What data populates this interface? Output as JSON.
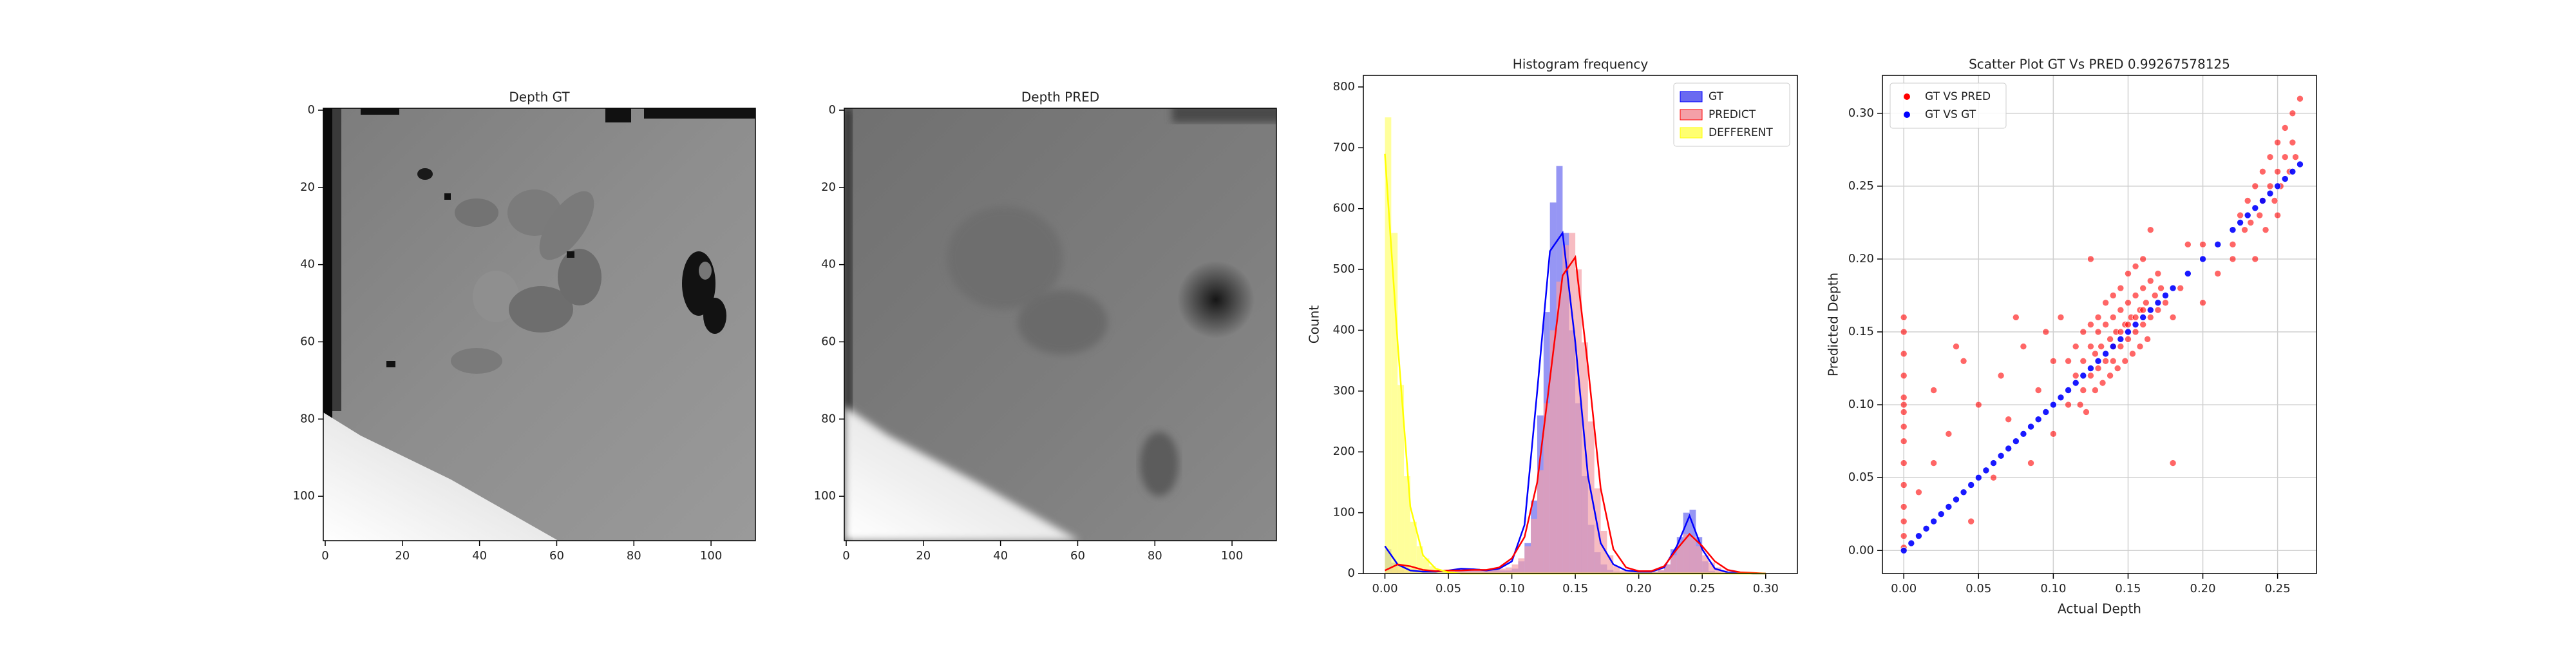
{
  "chart_data": [
    {
      "type": "image",
      "title": "Depth GT",
      "xlim": [
        -0.5,
        111.5
      ],
      "ylim": [
        111.5,
        -0.5
      ],
      "xticks": [
        0,
        20,
        40,
        60,
        80,
        100
      ],
      "yticks": [
        0,
        20,
        40,
        60,
        80,
        100
      ]
    },
    {
      "type": "image",
      "title": "Depth PRED",
      "xlim": [
        -0.5,
        111.5
      ],
      "ylim": [
        111.5,
        -0.5
      ],
      "xticks": [
        0,
        20,
        40,
        60,
        80,
        100
      ],
      "yticks": [
        0,
        20,
        40,
        60,
        80,
        100
      ]
    },
    {
      "type": "histogram",
      "title": "Histogram frequency",
      "ylabel": "Count",
      "legend": "upper right",
      "xlim": [
        -0.017,
        0.325
      ],
      "ylim": [
        0,
        819
      ],
      "xticks": [
        {
          "value": 0,
          "label": "0.00"
        },
        0.05,
        {
          "value": 0.1,
          "label": "0.10"
        },
        0.15,
        {
          "value": 0.2,
          "label": "0.20"
        },
        0.25,
        {
          "value": 0.3,
          "label": "0.30"
        }
      ],
      "yticks": [
        0,
        100,
        200,
        300,
        400,
        500,
        600,
        700,
        800
      ],
      "bins": [
        0,
        0.005,
        0.01,
        0.015,
        0.02,
        0.025,
        0.03,
        0.035,
        0.04,
        0.045,
        0.05,
        0.055,
        0.06,
        0.065,
        0.07,
        0.075,
        0.08,
        0.085,
        0.09,
        0.095,
        0.1,
        0.105,
        0.11,
        0.115,
        0.12,
        0.125,
        0.13,
        0.135,
        0.14,
        0.145,
        0.15,
        0.155,
        0.16,
        0.165,
        0.17,
        0.175,
        0.18,
        0.185,
        0.19,
        0.195,
        0.2,
        0.205,
        0.21,
        0.215,
        0.22,
        0.225,
        0.23,
        0.235,
        0.24,
        0.245,
        0.25,
        0.255,
        0.26,
        0.265,
        0.27,
        0.275,
        0.28,
        0.285,
        0.29,
        0.295,
        0.3,
        0.305,
        0.31
      ],
      "kde_x": [
        0,
        0.01,
        0.02,
        0.03,
        0.04,
        0.05,
        0.06,
        0.07,
        0.08,
        0.09,
        0.1,
        0.11,
        0.12,
        0.13,
        0.14,
        0.15,
        0.16,
        0.17,
        0.18,
        0.19,
        0.2,
        0.21,
        0.22,
        0.23,
        0.24,
        0.25,
        0.26,
        0.27,
        0.28,
        0.29,
        0.3
      ],
      "series": [
        {
          "name": "GT",
          "color": "#0000ff",
          "bar_color": "#6a6af0",
          "values": [
            40,
            18,
            6,
            3,
            2,
            2,
            2,
            2,
            2,
            2,
            3,
            5,
            6,
            8,
            8,
            7,
            6,
            6,
            5,
            5,
            8,
            20,
            50,
            120,
            260,
            430,
            610,
            670,
            560,
            400,
            280,
            160,
            80,
            35,
            15,
            6,
            3,
            2,
            2,
            2,
            2,
            2,
            3,
            5,
            15,
            40,
            60,
            100,
            105,
            60,
            20,
            4,
            2,
            1,
            0,
            0,
            0,
            0,
            0,
            0,
            0,
            0
          ],
          "kde": [
            45,
            15,
            5,
            3,
            3,
            5,
            8,
            7,
            5,
            8,
            20,
            80,
            300,
            530,
            560,
            380,
            160,
            50,
            15,
            5,
            3,
            3,
            10,
            45,
            95,
            40,
            8,
            2,
            1,
            0,
            0
          ]
        },
        {
          "name": "PREDICT",
          "color": "#ff0000",
          "bar_color": "#f4a0a8",
          "values": [
            5,
            12,
            15,
            12,
            8,
            5,
            4,
            3,
            3,
            3,
            4,
            5,
            6,
            6,
            6,
            6,
            6,
            6,
            8,
            10,
            15,
            25,
            45,
            90,
            170,
            280,
            400,
            480,
            540,
            560,
            500,
            380,
            250,
            140,
            70,
            30,
            12,
            5,
            3,
            2,
            2,
            2,
            3,
            6,
            15,
            30,
            50,
            65,
            60,
            45,
            30,
            18,
            10,
            5,
            3,
            2,
            1,
            1,
            1,
            0,
            0,
            0
          ],
          "kde": [
            5,
            15,
            12,
            6,
            4,
            5,
            5,
            6,
            6,
            10,
            25,
            60,
            150,
            320,
            490,
            520,
            340,
            140,
            40,
            10,
            4,
            4,
            12,
            40,
            65,
            45,
            20,
            6,
            2,
            1,
            0
          ]
        },
        {
          "name": "DEFFERENT",
          "color": "#ffff00",
          "bar_color": "#ffff70",
          "values": [
            750,
            560,
            310,
            160,
            85,
            45,
            25,
            12,
            6,
            3,
            2,
            1,
            1,
            0,
            0,
            0,
            0,
            0,
            0,
            0,
            0,
            0,
            0,
            0,
            0,
            0,
            0,
            0,
            0,
            0,
            0,
            0,
            0,
            0,
            0,
            0,
            0,
            0,
            0,
            0,
            0,
            0,
            0,
            0,
            0,
            0,
            0,
            0,
            0,
            0,
            0,
            0,
            0,
            0,
            0,
            0,
            0,
            0,
            0,
            0,
            0,
            0
          ],
          "kde": [
            690,
            380,
            110,
            30,
            8,
            2,
            0,
            0,
            0,
            0,
            0,
            0,
            0,
            0,
            0,
            0,
            0,
            0,
            0,
            0,
            0,
            0,
            0,
            0,
            0,
            0,
            0,
            0,
            0,
            0,
            0
          ]
        }
      ]
    },
    {
      "type": "scatter",
      "title": "Scatter Plot GT Vs PRED 0.99267578125",
      "xlabel": "Actual Depth",
      "ylabel": "Predicted Depth",
      "legend": "upper left",
      "grid": true,
      "xlim": [
        -0.0143,
        0.276
      ],
      "ylim": [
        -0.0158,
        0.326
      ],
      "xticks": [
        {
          "value": 0,
          "label": "0.00"
        },
        0.05,
        {
          "value": 0.1,
          "label": "0.10"
        },
        0.15,
        {
          "value": 0.2,
          "label": "0.20"
        },
        0.25
      ],
      "yticks": [
        {
          "value": 0,
          "label": "0.00"
        },
        0.05,
        {
          "value": 0.1,
          "label": "0.10"
        },
        0.15,
        {
          "value": 0.2,
          "label": "0.20"
        },
        0.25,
        {
          "value": 0.3,
          "label": "0.30"
        }
      ],
      "series": [
        {
          "name": "GT VS PRED",
          "color": "#ff0000",
          "x": [
            0,
            0,
            0,
            0,
            0,
            0,
            0,
            0,
            0,
            0,
            0,
            0,
            0,
            0,
            0,
            0.01,
            0.02,
            0.03,
            0.04,
            0.05,
            0.06,
            0.065,
            0.07,
            0.08,
            0.085,
            0.09,
            0.095,
            0.1,
            0.1,
            0.105,
            0.11,
            0.02,
            0.045,
            0.075,
            0.035,
            0.115,
            0.12,
            0.12,
            0.125,
            0.125,
            0.128,
            0.13,
            0.13,
            0.132,
            0.135,
            0.135,
            0.138,
            0.14,
            0.14,
            0.142,
            0.145,
            0.145,
            0.148,
            0.15,
            0.15,
            0.152,
            0.155,
            0.155,
            0.158,
            0.16,
            0.16,
            0.162,
            0.165,
            0.165,
            0.168,
            0.17,
            0.17,
            0.172,
            0.175,
            0.118,
            0.122,
            0.128,
            0.133,
            0.138,
            0.143,
            0.148,
            0.153,
            0.158,
            0.163,
            0.13,
            0.135,
            0.14,
            0.145,
            0.15,
            0.155,
            0.16,
            0.125,
            0.12,
            0.115,
            0.11,
            0.14,
            0.15,
            0.145,
            0.155,
            0.16,
            0.18,
            0.19,
            0.2,
            0.21,
            0.185,
            0.18,
            0.2,
            0.22,
            0.165,
            0.125,
            0.22,
            0.225,
            0.228,
            0.23,
            0.232,
            0.235,
            0.238,
            0.24,
            0.24,
            0.242,
            0.245,
            0.245,
            0.248,
            0.25,
            0.25,
            0.252,
            0.255,
            0.255,
            0.258,
            0.26,
            0.26,
            0.262,
            0.265,
            0.235,
            0.25
          ],
          "values": [
            0.002,
            0.01,
            0.02,
            0.03,
            0.045,
            0.06,
            0.075,
            0.085,
            0.095,
            0.1,
            0.105,
            0.12,
            0.135,
            0.15,
            0.16,
            0.04,
            0.11,
            0.08,
            0.13,
            0.1,
            0.05,
            0.12,
            0.09,
            0.14,
            0.06,
            0.11,
            0.15,
            0.08,
            0.13,
            0.16,
            0.1,
            0.06,
            0.02,
            0.16,
            0.14,
            0.12,
            0.13,
            0.11,
            0.14,
            0.12,
            0.135,
            0.15,
            0.125,
            0.14,
            0.13,
            0.155,
            0.145,
            0.16,
            0.13,
            0.15,
            0.14,
            0.165,
            0.155,
            0.17,
            0.145,
            0.16,
            0.15,
            0.175,
            0.165,
            0.155,
            0.18,
            0.17,
            0.16,
            0.185,
            0.175,
            0.165,
            0.19,
            0.18,
            0.17,
            0.1,
            0.095,
            0.11,
            0.115,
            0.12,
            0.125,
            0.13,
            0.135,
            0.14,
            0.145,
            0.16,
            0.17,
            0.175,
            0.18,
            0.19,
            0.195,
            0.2,
            0.155,
            0.15,
            0.14,
            0.13,
            0.14,
            0.155,
            0.15,
            0.16,
            0.165,
            0.16,
            0.21,
            0.17,
            0.19,
            0.18,
            0.06,
            0.21,
            0.2,
            0.22,
            0.2,
            0.21,
            0.23,
            0.22,
            0.24,
            0.225,
            0.25,
            0.23,
            0.26,
            0.24,
            0.22,
            0.25,
            0.27,
            0.24,
            0.26,
            0.28,
            0.25,
            0.27,
            0.29,
            0.26,
            0.28,
            0.3,
            0.27,
            0.31,
            0.2,
            0.23
          ]
        },
        {
          "name": "GT VS GT",
          "color": "#0000ff",
          "x": [
            0,
            0.005,
            0.01,
            0.015,
            0.02,
            0.025,
            0.03,
            0.035,
            0.04,
            0.045,
            0.05,
            0.055,
            0.06,
            0.065,
            0.07,
            0.075,
            0.08,
            0.085,
            0.09,
            0.095,
            0.1,
            0.105,
            0.11,
            0.115,
            0.12,
            0.125,
            0.13,
            0.135,
            0.14,
            0.145,
            0.15,
            0.155,
            0.16,
            0.165,
            0.17,
            0.175,
            0.18,
            0.19,
            0.2,
            0.21,
            0.22,
            0.225,
            0.23,
            0.235,
            0.24,
            0.245,
            0.25,
            0.255,
            0.26,
            0.265
          ],
          "values": [
            0,
            0.005,
            0.01,
            0.015,
            0.02,
            0.025,
            0.03,
            0.035,
            0.04,
            0.045,
            0.05,
            0.055,
            0.06,
            0.065,
            0.07,
            0.075,
            0.08,
            0.085,
            0.09,
            0.095,
            0.1,
            0.105,
            0.11,
            0.115,
            0.12,
            0.125,
            0.13,
            0.135,
            0.14,
            0.145,
            0.15,
            0.155,
            0.16,
            0.165,
            0.17,
            0.175,
            0.18,
            0.19,
            0.2,
            0.21,
            0.22,
            0.225,
            0.23,
            0.235,
            0.24,
            0.245,
            0.25,
            0.255,
            0.26,
            0.265
          ]
        }
      ]
    }
  ]
}
